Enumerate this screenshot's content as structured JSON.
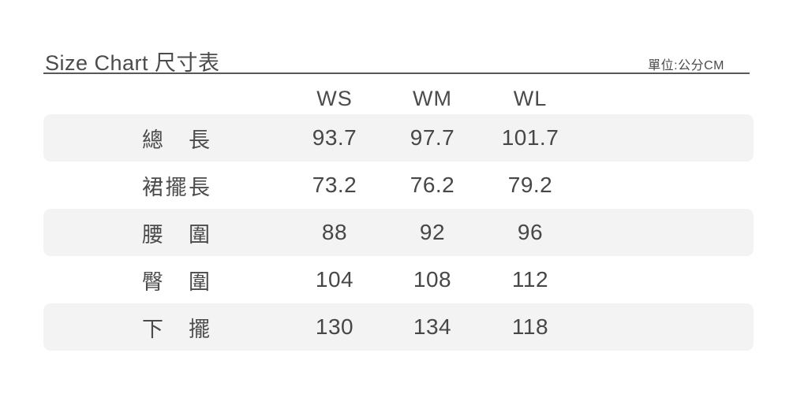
{
  "header": {
    "title": "Size Chart 尺寸表",
    "unit_label": "單位:公分CM"
  },
  "chart_data": {
    "type": "table",
    "size_headers": [
      "WS",
      "WM",
      "WL"
    ],
    "rows": [
      {
        "label": "總長",
        "values": [
          "93.7",
          "97.7",
          "101.7"
        ]
      },
      {
        "label": "裙擺長",
        "values": [
          "73.2",
          "76.2",
          "79.2"
        ]
      },
      {
        "label": "腰圍",
        "values": [
          "88",
          "92",
          "96"
        ]
      },
      {
        "label": "臀圍",
        "values": [
          "104",
          "108",
          "112"
        ]
      },
      {
        "label": "下擺",
        "values": [
          "130",
          "134",
          "118"
        ]
      }
    ]
  },
  "colors": {
    "text": "#4a4a4a",
    "shaded_row_background": "#f3f3f3",
    "rule": "#57585a",
    "page_background": "#ffffff"
  }
}
